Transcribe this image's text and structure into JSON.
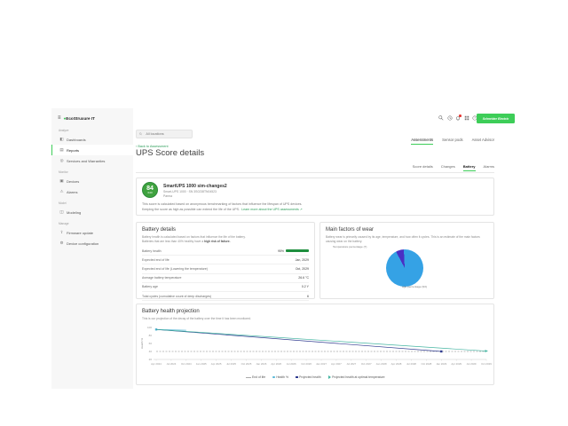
{
  "colors": {
    "brand_green": "#3dcd58",
    "link_green": "#2e9e5b",
    "score_green": "#3fa23f",
    "health_bar_green": "#1e8e3e",
    "pie_blue": "#35a2e5",
    "pie_purple": "#4a30c4",
    "notification_red": "#e53935"
  },
  "sidebar": {
    "logo_text": "EcoStruxure IT",
    "sections": [
      {
        "header": "Analyze",
        "items": [
          {
            "label": "Dashboards",
            "icon": "dashboards-icon",
            "glyph": "◧",
            "active": false
          },
          {
            "label": "Reports",
            "icon": "reports-icon",
            "glyph": "▤",
            "active": true
          },
          {
            "label": "Services and Warranties",
            "icon": "warranties-icon",
            "glyph": "◎",
            "active": false
          }
        ]
      },
      {
        "header": "Monitor",
        "items": [
          {
            "label": "Devices",
            "icon": "devices-icon",
            "glyph": "▣",
            "active": false
          },
          {
            "label": "Alarms",
            "icon": "alarms-icon",
            "glyph": "⚠",
            "active": false
          }
        ]
      },
      {
        "header": "Model",
        "items": [
          {
            "label": "Modeling",
            "icon": "modeling-icon",
            "glyph": "◫",
            "active": false
          }
        ]
      },
      {
        "header": "Manage",
        "items": [
          {
            "label": "Firmware update",
            "icon": "firmware-update-icon",
            "glyph": "⇧",
            "active": false
          },
          {
            "label": "Device configuration",
            "icon": "device-configuration-icon",
            "glyph": "⚙",
            "active": false
          }
        ]
      }
    ]
  },
  "topbar": {
    "search_placeholder": "All locations",
    "brand": "Schneider Electric"
  },
  "tabs": {
    "primary": [
      {
        "label": "Assessments",
        "active": true
      },
      {
        "label": "Sensor pods",
        "active": false
      },
      {
        "label": "Asset Advisor",
        "active": false
      }
    ],
    "secondary": [
      {
        "label": "Score details",
        "active": false
      },
      {
        "label": "Changes",
        "active": false
      },
      {
        "label": "Battery",
        "active": true
      },
      {
        "label": "Alarms",
        "active": false
      }
    ]
  },
  "page": {
    "back_link": "‹ Back to Assessment",
    "title": "UPS Score details"
  },
  "score_card": {
    "score": "84",
    "score_max": "/100",
    "device_name": "SmartUPS 1000 sim-changes2",
    "device_model": "Smart-UPS 1000 · SN 3S0238TN04523",
    "device_location": "Parma",
    "description_line1": "This score is calculated based on anonymous benchmarking of factors that influence the lifespan of UPS devices.",
    "description_line2": "Keeping the score as high as possible can extend the life of the UPS.",
    "learn_more": "Learn more about the UPS assessments ↗"
  },
  "battery_details": {
    "title": "Battery details",
    "description_line1": "Battery health is calculated based on factors that influence the life of the battery.",
    "description_line2_prefix": "Batteries that are less than 40% healthy have a ",
    "description_line2_bold": "high risk of failure.",
    "rows": [
      {
        "label": "Battery health",
        "value": "95%",
        "bar": true
      },
      {
        "label": "Expected end of life",
        "value": "Jan, 2029",
        "bar": false
      },
      {
        "label": "Expected end of life (Lowering the temperature)",
        "value": "Oct, 2029",
        "bar": false
      },
      {
        "label": "Average battery temperature",
        "value": "26.6 °C",
        "bar": false
      },
      {
        "label": "Battery age",
        "value": "0.2 Y",
        "bar": false
      },
      {
        "label": "Total cycles (cumulative count of deep discharges)",
        "value": "6",
        "bar": false
      }
    ]
  },
  "wear_card": {
    "title": "Main factors of wear",
    "description": "Battery wear is primarily caused by its age, temperature, and how often it cycles. This is an estimate of the main factors causing wear on the battery."
  },
  "projection_card": {
    "title": "Battery health projection",
    "description": "This is our projection of the decay of the battery over the time it has been monitored."
  },
  "chart_data": [
    {
      "type": "pie",
      "title": "Main factors of wear",
      "labels": [
        "age percentage",
        "Temperature percentage"
      ],
      "values": [
        93,
        7
      ],
      "colors": [
        "#35a2e5",
        "#4a30c4"
      ],
      "annotations": [
        "Temperature percentage (7)",
        "age percentage (93)"
      ],
      "start_angle_deg": -28
    },
    {
      "type": "line",
      "title": "Battery health projection",
      "xlabel": "",
      "ylabel": "Health %",
      "ylim": [
        20,
        100
      ],
      "yticks": [
        100,
        80,
        60,
        40,
        20
      ],
      "grid": false,
      "legend_position": "bottom",
      "categories": [
        "Apr 2024",
        "Jul 2024",
        "Oct 2024",
        "Jan 2025",
        "Apr 2025",
        "Jul 2025",
        "Oct 2025",
        "Jan 2026",
        "Apr 2026",
        "Jul 2026",
        "Oct 2026",
        "Jan 2027",
        "Apr 2027",
        "Jul 2027",
        "Oct 2027",
        "Jan 2028",
        "Apr 2028",
        "Jul 2028",
        "Oct 2028",
        "Jan 2029",
        "Apr 2029",
        "Jul 2029",
        "Oct 2029"
      ],
      "series": [
        {
          "name": "End of life",
          "color": "#aaaaaa",
          "dash": true,
          "swatch": "dash",
          "points": [
            [
              0,
              40
            ],
            [
              22,
              40
            ]
          ]
        },
        {
          "name": "Health %",
          "color": "#56b7d6",
          "swatch": "dot",
          "start_marker": "square",
          "points": [
            [
              0,
              95
            ],
            [
              2,
              93
            ]
          ]
        },
        {
          "name": "Projected health",
          "color": "#2f3a8f",
          "swatch": "square",
          "end_marker": "square",
          "points": [
            [
              0,
              95
            ],
            [
              19,
              40
            ]
          ]
        },
        {
          "name": "Projected health at optimal temperature",
          "color": "#45b5a2",
          "swatch": "arrow",
          "end_marker": "arrow",
          "points": [
            [
              0,
              95
            ],
            [
              22,
              41
            ]
          ]
        }
      ]
    }
  ]
}
